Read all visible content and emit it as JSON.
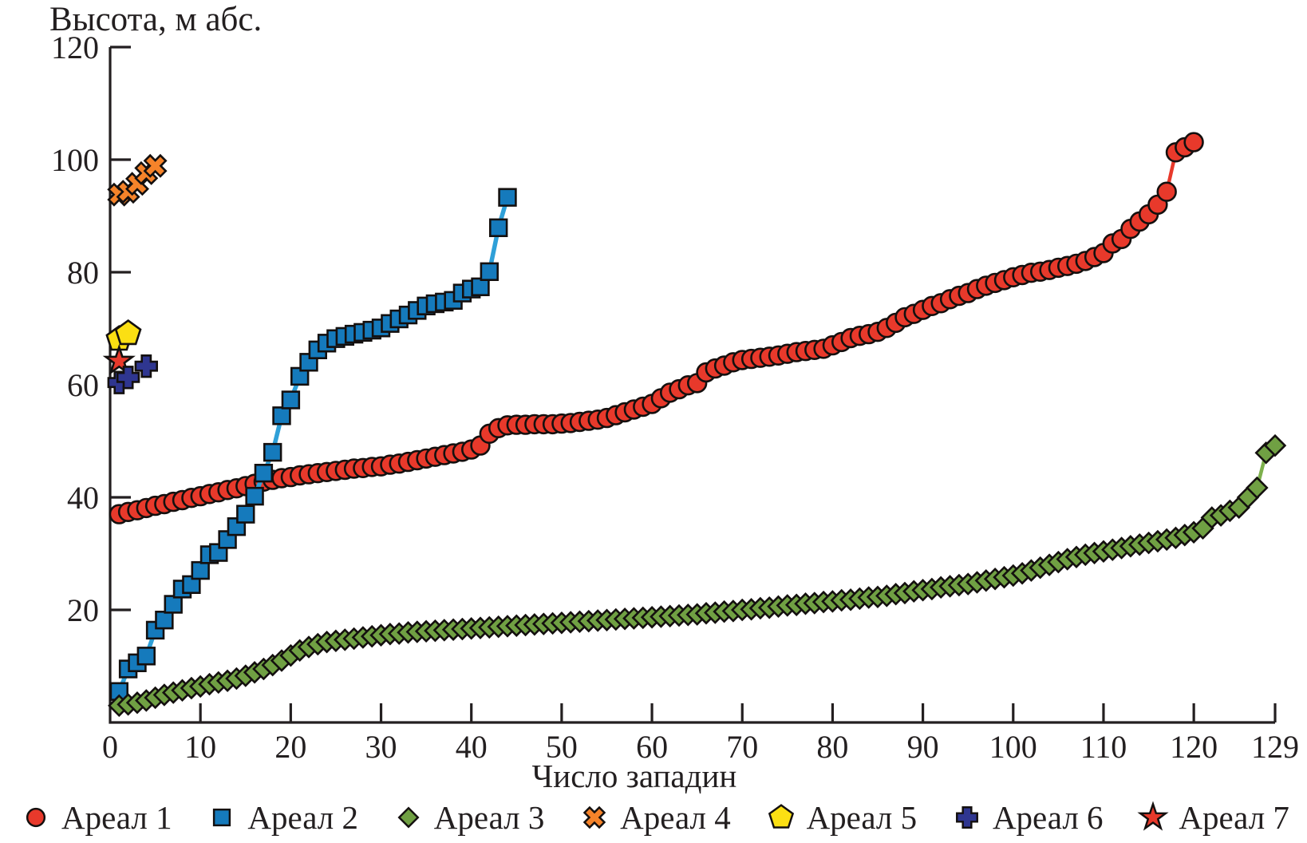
{
  "chart_data": {
    "type": "scatter",
    "title": "Высота, м абс.",
    "xlabel": "Число западин",
    "ylabel": "Высота, м абс.",
    "xlim": [
      0,
      129
    ],
    "ylim": [
      0,
      120
    ],
    "x_ticks": [
      0,
      10,
      20,
      30,
      40,
      50,
      60,
      70,
      80,
      90,
      100,
      110,
      120,
      129
    ],
    "y_ticks": [
      20,
      40,
      60,
      80,
      100,
      120
    ],
    "grid": false,
    "legend_position": "bottom",
    "axis_color": "#231f20",
    "series": [
      {
        "name": "Ареал 1",
        "marker": "circle",
        "color": "#e8392b",
        "line_color": "#e8392b",
        "points": [
          [
            1,
            37.0
          ],
          [
            2,
            37.4
          ],
          [
            3,
            37.7
          ],
          [
            4,
            38.1
          ],
          [
            5,
            38.5
          ],
          [
            6,
            38.8
          ],
          [
            7,
            39.2
          ],
          [
            8,
            39.5
          ],
          [
            9,
            39.9
          ],
          [
            10,
            40.2
          ],
          [
            11,
            40.6
          ],
          [
            12,
            40.9
          ],
          [
            13,
            41.3
          ],
          [
            14,
            41.6
          ],
          [
            15,
            42.0
          ],
          [
            16,
            42.4
          ],
          [
            17,
            42.8
          ],
          [
            18,
            43.1
          ],
          [
            19,
            43.4
          ],
          [
            20,
            43.6
          ],
          [
            21,
            43.9
          ],
          [
            22,
            44.1
          ],
          [
            23,
            44.3
          ],
          [
            24,
            44.5
          ],
          [
            25,
            44.7
          ],
          [
            26,
            44.9
          ],
          [
            27,
            45.1
          ],
          [
            28,
            45.2
          ],
          [
            29,
            45.4
          ],
          [
            30,
            45.5
          ],
          [
            31,
            45.8
          ],
          [
            32,
            46.0
          ],
          [
            33,
            46.3
          ],
          [
            34,
            46.6
          ],
          [
            35,
            46.9
          ],
          [
            36,
            47.2
          ],
          [
            37,
            47.5
          ],
          [
            38,
            47.8
          ],
          [
            39,
            48.1
          ],
          [
            40,
            48.5
          ],
          [
            41,
            49.2
          ],
          [
            42,
            51.3
          ],
          [
            43,
            52.3
          ],
          [
            44,
            52.8
          ],
          [
            45,
            52.9
          ],
          [
            46,
            52.9
          ],
          [
            47,
            53.0
          ],
          [
            48,
            53.0
          ],
          [
            49,
            53.0
          ],
          [
            50,
            53.1
          ],
          [
            51,
            53.2
          ],
          [
            52,
            53.4
          ],
          [
            53,
            53.6
          ],
          [
            54,
            53.8
          ],
          [
            55,
            54.1
          ],
          [
            56,
            54.6
          ],
          [
            57,
            55.1
          ],
          [
            58,
            55.6
          ],
          [
            59,
            56.1
          ],
          [
            60,
            56.6
          ],
          [
            61,
            57.6
          ],
          [
            62,
            58.6
          ],
          [
            63,
            59.2
          ],
          [
            64,
            59.9
          ],
          [
            65,
            60.3
          ],
          [
            66,
            62.2
          ],
          [
            67,
            62.9
          ],
          [
            68,
            63.4
          ],
          [
            69,
            64.0
          ],
          [
            70,
            64.4
          ],
          [
            71,
            64.6
          ],
          [
            72,
            64.8
          ],
          [
            73,
            65.0
          ],
          [
            74,
            65.2
          ],
          [
            75,
            65.5
          ],
          [
            76,
            65.8
          ],
          [
            77,
            66.0
          ],
          [
            78,
            66.2
          ],
          [
            79,
            66.4
          ],
          [
            80,
            67.0
          ],
          [
            81,
            67.6
          ],
          [
            82,
            68.3
          ],
          [
            83,
            68.7
          ],
          [
            84,
            69.0
          ],
          [
            85,
            69.4
          ],
          [
            86,
            70.1
          ],
          [
            87,
            71.0
          ],
          [
            88,
            72.0
          ],
          [
            89,
            72.6
          ],
          [
            90,
            73.3
          ],
          [
            91,
            74.0
          ],
          [
            92,
            74.5
          ],
          [
            93,
            75.2
          ],
          [
            94,
            75.8
          ],
          [
            95,
            76.3
          ],
          [
            96,
            77.0
          ],
          [
            97,
            77.6
          ],
          [
            98,
            78.1
          ],
          [
            99,
            78.6
          ],
          [
            100,
            79.1
          ],
          [
            101,
            79.5
          ],
          [
            102,
            79.9
          ],
          [
            103,
            80.1
          ],
          [
            104,
            80.4
          ],
          [
            105,
            80.8
          ],
          [
            106,
            81.1
          ],
          [
            107,
            81.5
          ],
          [
            108,
            82.0
          ],
          [
            109,
            82.7
          ],
          [
            110,
            83.4
          ],
          [
            111,
            85.1
          ],
          [
            112,
            85.9
          ],
          [
            113,
            87.7
          ],
          [
            114,
            89.0
          ],
          [
            115,
            90.3
          ],
          [
            116,
            92.0
          ],
          [
            117,
            94.3
          ],
          [
            118,
            101.3
          ],
          [
            119,
            102.2
          ],
          [
            120,
            103.1
          ]
        ]
      },
      {
        "name": "Ареал 2",
        "marker": "square",
        "color": "#157abc",
        "line_color": "#2fa0d8",
        "points": [
          [
            1,
            5.5
          ],
          [
            2,
            9.5
          ],
          [
            3,
            10.6
          ],
          [
            4,
            11.8
          ],
          [
            5,
            16.4
          ],
          [
            6,
            18.2
          ],
          [
            7,
            21.0
          ],
          [
            8,
            23.7
          ],
          [
            9,
            24.5
          ],
          [
            10,
            27.0
          ],
          [
            11,
            29.8
          ],
          [
            12,
            30.2
          ],
          [
            13,
            32.5
          ],
          [
            14,
            34.8
          ],
          [
            15,
            37.0
          ],
          [
            16,
            40.2
          ],
          [
            17,
            44.3
          ],
          [
            18,
            48.0
          ],
          [
            19,
            54.5
          ],
          [
            20,
            57.3
          ],
          [
            21,
            61.5
          ],
          [
            22,
            64.0
          ],
          [
            23,
            66.2
          ],
          [
            24,
            67.4
          ],
          [
            25,
            68.2
          ],
          [
            26,
            68.6
          ],
          [
            27,
            69.0
          ],
          [
            28,
            69.3
          ],
          [
            29,
            69.7
          ],
          [
            30,
            70.1
          ],
          [
            31,
            70.9
          ],
          [
            32,
            71.7
          ],
          [
            33,
            72.4
          ],
          [
            34,
            73.2
          ],
          [
            35,
            74.0
          ],
          [
            36,
            74.4
          ],
          [
            37,
            74.7
          ],
          [
            38,
            75.0
          ],
          [
            39,
            76.3
          ],
          [
            40,
            77.0
          ],
          [
            41,
            77.4
          ],
          [
            42,
            80.1
          ],
          [
            43,
            87.9
          ],
          [
            44,
            93.3
          ]
        ]
      },
      {
        "name": "Ареал 3",
        "marker": "diamond",
        "color": "#70a043",
        "line_color": "#7db04c",
        "points": [
          [
            1,
            3.0
          ],
          [
            2,
            3.2
          ],
          [
            3,
            3.5
          ],
          [
            4,
            3.9
          ],
          [
            5,
            4.4
          ],
          [
            6,
            4.9
          ],
          [
            7,
            5.3
          ],
          [
            8,
            5.7
          ],
          [
            9,
            6.1
          ],
          [
            10,
            6.4
          ],
          [
            11,
            6.8
          ],
          [
            12,
            7.1
          ],
          [
            13,
            7.4
          ],
          [
            14,
            7.8
          ],
          [
            15,
            8.3
          ],
          [
            16,
            8.9
          ],
          [
            17,
            9.5
          ],
          [
            18,
            10.2
          ],
          [
            19,
            11.0
          ],
          [
            20,
            11.9
          ],
          [
            21,
            12.8
          ],
          [
            22,
            13.4
          ],
          [
            23,
            13.9
          ],
          [
            24,
            14.3
          ],
          [
            25,
            14.5
          ],
          [
            26,
            14.7
          ],
          [
            27,
            14.9
          ],
          [
            28,
            15.1
          ],
          [
            29,
            15.3
          ],
          [
            30,
            15.5
          ],
          [
            31,
            15.7
          ],
          [
            32,
            15.8
          ],
          [
            33,
            16.0
          ],
          [
            34,
            16.1
          ],
          [
            35,
            16.2
          ],
          [
            36,
            16.3
          ],
          [
            37,
            16.4
          ],
          [
            38,
            16.5
          ],
          [
            39,
            16.6
          ],
          [
            40,
            16.7
          ],
          [
            41,
            16.8
          ],
          [
            42,
            16.9
          ],
          [
            43,
            17.0
          ],
          [
            44,
            17.1
          ],
          [
            45,
            17.2
          ],
          [
            46,
            17.3
          ],
          [
            47,
            17.4
          ],
          [
            48,
            17.5
          ],
          [
            49,
            17.6
          ],
          [
            50,
            17.7
          ],
          [
            51,
            17.8
          ],
          [
            52,
            17.9
          ],
          [
            53,
            18.0
          ],
          [
            54,
            18.1
          ],
          [
            55,
            18.2
          ],
          [
            56,
            18.3
          ],
          [
            57,
            18.4
          ],
          [
            58,
            18.5
          ],
          [
            59,
            18.6
          ],
          [
            60,
            18.7
          ],
          [
            61,
            18.8
          ],
          [
            62,
            18.9
          ],
          [
            63,
            19.0
          ],
          [
            64,
            19.1
          ],
          [
            65,
            19.2
          ],
          [
            66,
            19.4
          ],
          [
            67,
            19.5
          ],
          [
            68,
            19.7
          ],
          [
            69,
            19.8
          ],
          [
            70,
            20.0
          ],
          [
            71,
            20.1
          ],
          [
            72,
            20.3
          ],
          [
            73,
            20.4
          ],
          [
            74,
            20.6
          ],
          [
            75,
            20.8
          ],
          [
            76,
            20.9
          ],
          [
            77,
            21.1
          ],
          [
            78,
            21.2
          ],
          [
            79,
            21.4
          ],
          [
            80,
            21.5
          ],
          [
            81,
            21.7
          ],
          [
            82,
            21.8
          ],
          [
            83,
            22.0
          ],
          [
            84,
            22.2
          ],
          [
            85,
            22.3
          ],
          [
            86,
            22.5
          ],
          [
            87,
            22.8
          ],
          [
            88,
            23.0
          ],
          [
            89,
            23.3
          ],
          [
            90,
            23.5
          ],
          [
            91,
            23.7
          ],
          [
            92,
            24.0
          ],
          [
            93,
            24.2
          ],
          [
            94,
            24.4
          ],
          [
            95,
            24.6
          ],
          [
            96,
            24.9
          ],
          [
            97,
            25.2
          ],
          [
            98,
            25.5
          ],
          [
            99,
            25.8
          ],
          [
            100,
            26.1
          ],
          [
            101,
            26.5
          ],
          [
            102,
            27.0
          ],
          [
            103,
            27.5
          ],
          [
            104,
            28.0
          ],
          [
            105,
            28.5
          ],
          [
            106,
            29.0
          ],
          [
            107,
            29.4
          ],
          [
            108,
            29.8
          ],
          [
            109,
            30.1
          ],
          [
            110,
            30.4
          ],
          [
            111,
            30.7
          ],
          [
            112,
            31.0
          ],
          [
            113,
            31.3
          ],
          [
            114,
            31.6
          ],
          [
            115,
            31.9
          ],
          [
            116,
            32.2
          ],
          [
            117,
            32.5
          ],
          [
            118,
            32.8
          ],
          [
            119,
            33.3
          ],
          [
            120,
            33.8
          ],
          [
            121,
            34.5
          ],
          [
            122,
            36.4
          ],
          [
            123,
            36.8
          ],
          [
            124,
            37.6
          ],
          [
            125,
            38.2
          ],
          [
            126,
            40.0
          ],
          [
            127,
            41.7
          ],
          [
            128,
            47.9
          ],
          [
            129,
            49.2
          ]
        ]
      },
      {
        "name": "Ареал 4",
        "marker": "xmark",
        "color": "#f5832a",
        "line_color": "none",
        "points": [
          [
            1,
            93.8
          ],
          [
            2,
            94.3
          ],
          [
            3,
            95.7
          ],
          [
            4,
            97.6
          ],
          [
            5,
            98.9
          ]
        ]
      },
      {
        "name": "Ареал 5",
        "marker": "pentagon",
        "color": "#fbdf13",
        "line_color": "none",
        "points": [
          [
            1,
            68.1
          ],
          [
            2,
            69.1
          ]
        ]
      },
      {
        "name": "Ареал 6",
        "marker": "plus",
        "color": "#2f3690",
        "line_color": "none",
        "points": [
          [
            1,
            60.4
          ],
          [
            2,
            61.3
          ],
          [
            4,
            63.3
          ]
        ]
      },
      {
        "name": "Ареал 7",
        "marker": "star",
        "color": "#e8392b",
        "line_color": "none",
        "points": [
          [
            1,
            64.2
          ]
        ]
      }
    ]
  }
}
